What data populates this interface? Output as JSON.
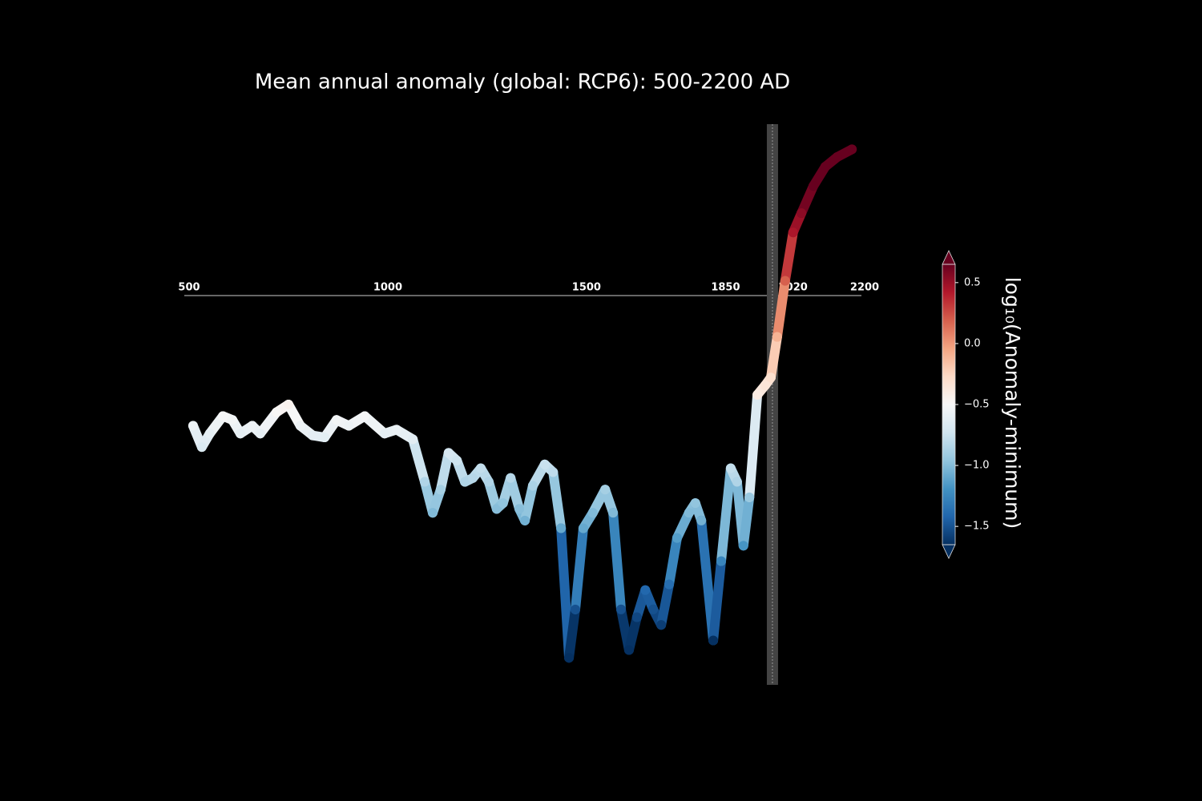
{
  "chart_data": {
    "type": "line",
    "title": "Mean annual anomaly (global: RCP6): 500-2200 AD",
    "x": [
      510,
      532,
      552,
      585,
      609,
      629,
      659,
      679,
      720,
      750,
      780,
      811,
      841,
      871,
      902,
      942,
      992,
      1022,
      1063,
      1093,
      1113,
      1133,
      1153,
      1174,
      1194,
      1214,
      1234,
      1254,
      1274,
      1290,
      1309,
      1331,
      1345,
      1365,
      1395,
      1416,
      1436,
      1456,
      1472,
      1492,
      1516,
      1547,
      1567,
      1587,
      1607,
      1627,
      1648,
      1668,
      1688,
      1708,
      1728,
      1758,
      1774,
      1789,
      1819,
      1839,
      1863,
      1879,
      1895,
      1910,
      1930,
      1950,
      1964,
      1980,
      2000,
      2020,
      2041,
      2071,
      2101,
      2131,
      2168
    ],
    "values": [
      -0.56,
      -0.67,
      -0.6,
      -0.51,
      -0.53,
      -0.6,
      -0.56,
      -0.6,
      -0.49,
      -0.45,
      -0.56,
      -0.61,
      -0.62,
      -0.53,
      -0.56,
      -0.51,
      -0.6,
      -0.58,
      -0.63,
      -0.85,
      -1.01,
      -0.89,
      -0.7,
      -0.74,
      -0.85,
      -0.83,
      -0.78,
      -0.85,
      -0.99,
      -0.96,
      -0.83,
      -0.99,
      -1.05,
      -0.87,
      -0.76,
      -0.8,
      -1.09,
      -1.76,
      -1.51,
      -1.09,
      -1.01,
      -0.89,
      -1.01,
      -1.51,
      -1.72,
      -1.55,
      -1.41,
      -1.51,
      -1.59,
      -1.38,
      -1.14,
      -1.01,
      -0.96,
      -1.05,
      -1.67,
      -1.26,
      -0.78,
      -0.85,
      -1.18,
      -0.93,
      -0.4,
      -0.35,
      -0.31,
      -0.1,
      0.19,
      0.44,
      0.54,
      0.68,
      0.78,
      0.83,
      0.87
    ],
    "xlim": [
      500,
      2200
    ],
    "xticks": [
      500,
      1000,
      1500,
      1850,
      2020,
      2200
    ],
    "ylim": [
      -1.9,
      1.0
    ],
    "vline": 1968,
    "colorbar": {
      "label": "log₁₀(Anomaly-minimum)",
      "clim": [
        -1.65,
        0.65
      ],
      "ticks": [
        {
          "value": -1.5,
          "label": "−1.5"
        },
        {
          "value": -1.0,
          "label": "−1.0"
        },
        {
          "value": -0.5,
          "label": "−0.5"
        },
        {
          "value": 0,
          "label": "0.0"
        },
        0.5
      ],
      "cmap": [
        "#053061",
        "#2166ac",
        "#4393c3",
        "#92c5de",
        "#d1e5f0",
        "#f7f7f7",
        "#fddbc7",
        "#f4a582",
        "#d6604d",
        "#b2182b",
        "#67001f"
      ]
    }
  }
}
